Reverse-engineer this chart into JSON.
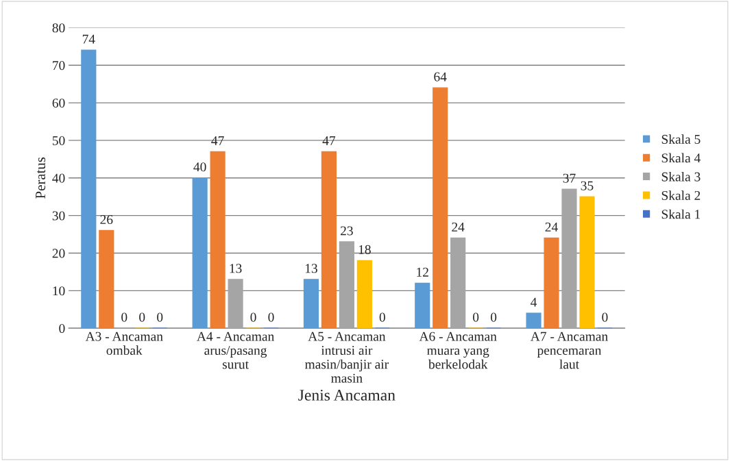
{
  "chart_data": {
    "type": "bar",
    "xlabel": "Jenis Ancaman",
    "ylabel": "Peratus",
    "categories": [
      "A3 - Ancaman\nombak",
      "A4 - Ancaman\narus/pasang\nsurut",
      "A5 - Ancaman\nintrusi air\nmasin/banjir air\nmasin",
      "A6 - Ancaman\nmuara yang\nberkelodak",
      "A7 - Ancaman\npencemaran\nlaut"
    ],
    "series": [
      {
        "name": "Skala 5",
        "color": "#5b9bd5",
        "values": [
          74,
          40,
          13,
          12,
          4
        ]
      },
      {
        "name": "Skala 4",
        "color": "#ed7d31",
        "values": [
          26,
          47,
          47,
          64,
          24
        ]
      },
      {
        "name": "Skala 3",
        "color": "#a5a5a5",
        "values": [
          0,
          13,
          23,
          24,
          37
        ]
      },
      {
        "name": "Skala 2",
        "color": "#ffc000",
        "values": [
          0,
          0,
          18,
          0,
          35
        ]
      },
      {
        "name": "Skala 1",
        "color": "#4472c4",
        "values": [
          0,
          0,
          0,
          0,
          0
        ]
      }
    ],
    "ylim": [
      0,
      80
    ],
    "yticks": [
      0,
      10,
      20,
      30,
      40,
      50,
      60,
      70,
      80
    ],
    "grid": "y",
    "legend": "right",
    "data_labels": true
  }
}
